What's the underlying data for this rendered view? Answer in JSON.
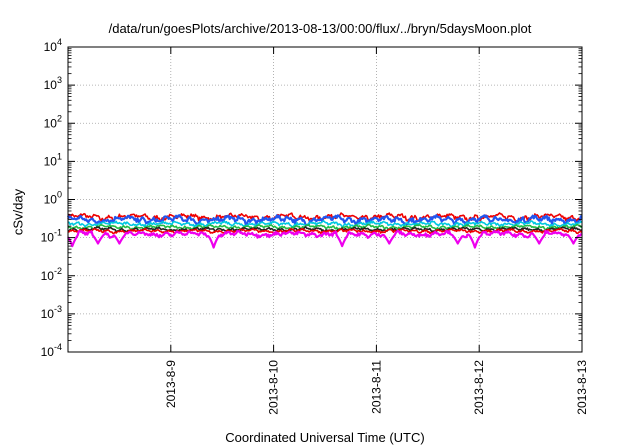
{
  "chart_data": {
    "type": "line",
    "title": "/data/run/goesPlots/archive/2013-08-13/00:00/flux/../bryn/5daysMoon.plot",
    "xlabel": "Coordinated Universal Time (UTC)",
    "ylabel": "cSv/day",
    "yscale": "log",
    "ylim": [
      0.0001,
      10000
    ],
    "y_ticks": [
      {
        "base": "10",
        "exp": "-4",
        "value": 0.0001
      },
      {
        "base": "10",
        "exp": "-3",
        "value": 0.001
      },
      {
        "base": "10",
        "exp": "-2",
        "value": 0.01
      },
      {
        "base": "10",
        "exp": "-1",
        "value": 0.1
      },
      {
        "base": "10",
        "exp": "0",
        "value": 1
      },
      {
        "base": "10",
        "exp": "1",
        "value": 10
      },
      {
        "base": "10",
        "exp": "2",
        "value": 100
      },
      {
        "base": "10",
        "exp": "3",
        "value": 1000
      },
      {
        "base": "10",
        "exp": "4",
        "value": 10000
      }
    ],
    "xlim": [
      "2013-08-08 00:00",
      "2013-08-13 00:00"
    ],
    "x_ticks": [
      {
        "label": "2013-8-9",
        "value": "2013-08-09"
      },
      {
        "label": "2013-8-10",
        "value": "2013-08-10"
      },
      {
        "label": "2013-8-11",
        "value": "2013-08-11"
      },
      {
        "label": "2013-8-12",
        "value": "2013-08-12"
      },
      {
        "label": "2013-8-13",
        "value": "2013-08-13"
      }
    ],
    "grid": true,
    "series": [
      {
        "color": "#ee0000",
        "level": 0.35,
        "spread": 0.09,
        "dips": []
      },
      {
        "color": "#2255ee",
        "level": 0.3,
        "spread": 0.1,
        "dips": []
      },
      {
        "color": "#00c8e0",
        "level": 0.23,
        "spread": 0.06,
        "dips": []
      },
      {
        "color": "#22bb44",
        "level": 0.19,
        "spread": 0.05,
        "dips": []
      },
      {
        "color": "#222222",
        "level": 0.165,
        "spread": 0.05,
        "dips": []
      },
      {
        "color": "#ee0000",
        "level": 0.15,
        "spread": 0.05,
        "dips": []
      },
      {
        "color": "#ee00ee",
        "level": 0.125,
        "spread": 0.07,
        "dips": [
          {
            "date": "2013-08-08 01:00",
            "value": 0.06
          },
          {
            "date": "2013-08-08 07:00",
            "value": 0.07
          },
          {
            "date": "2013-08-08 12:00",
            "value": 0.07
          },
          {
            "date": "2013-08-09 10:00",
            "value": 0.055
          },
          {
            "date": "2013-08-10 16:00",
            "value": 0.06
          },
          {
            "date": "2013-08-11 03:00",
            "value": 0.07
          },
          {
            "date": "2013-08-11 19:00",
            "value": 0.07
          },
          {
            "date": "2013-08-11 23:00",
            "value": 0.055
          },
          {
            "date": "2013-08-12 14:00",
            "value": 0.07
          },
          {
            "date": "2013-08-12 22:00",
            "value": 0.07
          }
        ]
      }
    ]
  }
}
